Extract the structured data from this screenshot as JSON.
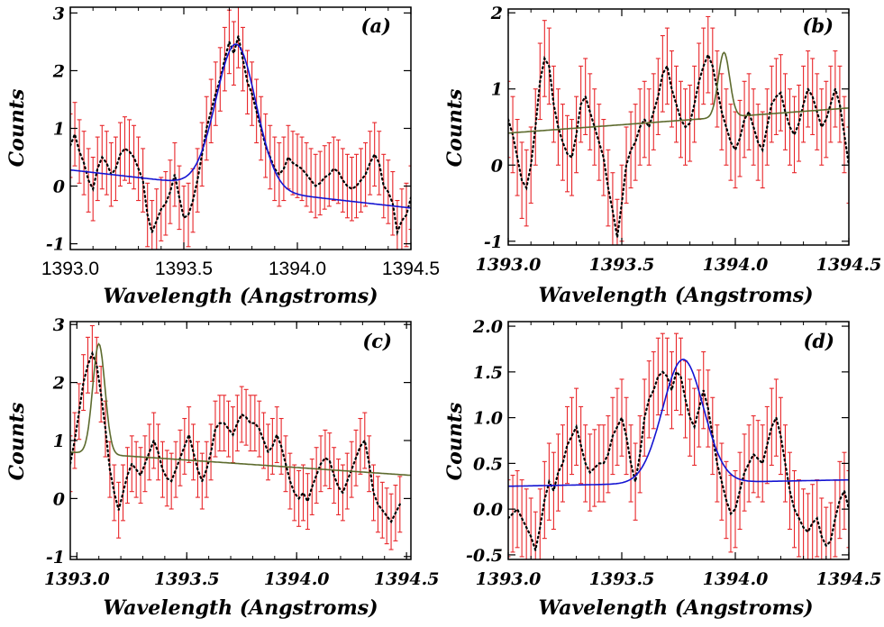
{
  "chart_data": [
    {
      "type": "line",
      "panel_label": "(a)",
      "xlabel": "Wavelength (Angstroms)",
      "ylabel": "Counts",
      "xlim": [
        1393.0,
        1394.5
      ],
      "ylim": [
        -1.1,
        3.1
      ],
      "xticks": [
        "1393.0",
        "1393.5",
        "1394.0",
        "1394.5"
      ],
      "xtick_values": [
        1393.0,
        1393.5,
        1394.0,
        1394.5
      ],
      "xtick_style": "plain",
      "yticks": [
        "-1",
        "0",
        "1",
        "2",
        "3"
      ],
      "ytick_values": [
        -1,
        0,
        1,
        2,
        3
      ],
      "data_color": "#e8262a",
      "fit_color": "#1414d2",
      "fit": {
        "amp": 2.5,
        "center": 1393.73,
        "sigma": 0.088,
        "base_y0": 0.28,
        "base_y1": -0.38
      },
      "x": [
        1393.0,
        1393.02,
        1393.04,
        1393.06,
        1393.08,
        1393.1,
        1393.12,
        1393.14,
        1393.16,
        1393.18,
        1393.2,
        1393.22,
        1393.24,
        1393.26,
        1393.28,
        1393.3,
        1393.32,
        1393.34,
        1393.36,
        1393.38,
        1393.4,
        1393.42,
        1393.44,
        1393.46,
        1393.48,
        1393.5,
        1393.52,
        1393.54,
        1393.56,
        1393.58,
        1393.6,
        1393.62,
        1393.64,
        1393.66,
        1393.68,
        1393.7,
        1393.72,
        1393.74,
        1393.76,
        1393.78,
        1393.8,
        1393.82,
        1393.84,
        1393.86,
        1393.88,
        1393.9,
        1393.92,
        1393.94,
        1393.96,
        1393.98,
        1394.0,
        1394.02,
        1394.04,
        1394.06,
        1394.08,
        1394.1,
        1394.12,
        1394.14,
        1394.16,
        1394.18,
        1394.2,
        1394.22,
        1394.24,
        1394.26,
        1394.28,
        1394.3,
        1394.32,
        1394.34,
        1394.36,
        1394.38,
        1394.4,
        1394.42,
        1394.44,
        1394.46,
        1394.48,
        1394.5
      ],
      "y": [
        0.7,
        0.9,
        0.6,
        0.4,
        0.1,
        -0.05,
        0.3,
        0.5,
        0.4,
        0.2,
        0.3,
        0.55,
        0.65,
        0.6,
        0.5,
        0.3,
        0.1,
        -0.5,
        -0.8,
        -0.6,
        -0.4,
        -0.3,
        -0.1,
        0.2,
        -0.2,
        -0.55,
        -0.5,
        -0.25,
        0.1,
        0.55,
        1.0,
        1.3,
        1.6,
        1.85,
        2.2,
        2.5,
        2.3,
        2.6,
        2.2,
        1.8,
        1.6,
        1.3,
        1.0,
        0.7,
        0.5,
        0.3,
        0.2,
        0.3,
        0.5,
        0.4,
        0.35,
        0.3,
        0.2,
        0.1,
        0.0,
        0.05,
        0.15,
        0.2,
        0.3,
        0.25,
        0.1,
        0.0,
        -0.05,
        0.0,
        0.1,
        0.2,
        0.4,
        0.55,
        0.4,
        0.0,
        -0.1,
        -0.3,
        -0.8,
        -0.6,
        -0.5,
        -0.2
      ],
      "err": 0.55
    },
    {
      "type": "line",
      "panel_label": "(b)",
      "xlabel": "Wavelength (Angstroms)",
      "ylabel": "Counts",
      "xlim": [
        1393.0,
        1394.5
      ],
      "ylim": [
        -1.05,
        2.05
      ],
      "xticks": [
        "1393.0",
        "1393.5",
        "1394.0",
        "1394.5"
      ],
      "xtick_values": [
        1393.0,
        1393.5,
        1394.0,
        1394.5
      ],
      "xtick_style": "italic",
      "yticks": [
        "-1",
        "0",
        "1",
        "2"
      ],
      "ytick_values": [
        -1,
        0,
        1,
        2
      ],
      "data_color": "#e8262a",
      "fit_color": "#5d6b2e",
      "fit": {
        "amp": 0.85,
        "center": 1393.95,
        "sigma": 0.025,
        "base_y0": 0.42,
        "base_y1": 0.75
      },
      "x": [
        1393.0,
        1393.02,
        1393.04,
        1393.06,
        1393.08,
        1393.1,
        1393.12,
        1393.14,
        1393.16,
        1393.18,
        1393.2,
        1393.22,
        1393.24,
        1393.26,
        1393.28,
        1393.3,
        1393.32,
        1393.34,
        1393.36,
        1393.38,
        1393.4,
        1393.42,
        1393.44,
        1393.46,
        1393.48,
        1393.5,
        1393.52,
        1393.54,
        1393.56,
        1393.58,
        1393.6,
        1393.62,
        1393.64,
        1393.66,
        1393.68,
        1393.7,
        1393.72,
        1393.74,
        1393.76,
        1393.78,
        1393.8,
        1393.82,
        1393.84,
        1393.86,
        1393.88,
        1393.9,
        1393.92,
        1393.94,
        1393.96,
        1393.98,
        1394.0,
        1394.02,
        1394.04,
        1394.06,
        1394.08,
        1394.1,
        1394.12,
        1394.14,
        1394.16,
        1394.18,
        1394.2,
        1394.22,
        1394.24,
        1394.26,
        1394.28,
        1394.3,
        1394.32,
        1394.34,
        1394.36,
        1394.38,
        1394.4,
        1394.42,
        1394.44,
        1394.46,
        1394.48,
        1394.5
      ],
      "y": [
        0.6,
        0.4,
        0.1,
        -0.2,
        -0.3,
        0.0,
        0.5,
        1.1,
        1.4,
        1.3,
        0.8,
        0.5,
        0.3,
        0.15,
        0.1,
        0.4,
        0.8,
        0.9,
        0.7,
        0.5,
        0.3,
        0.1,
        -0.3,
        -0.6,
        -0.95,
        -0.5,
        0.0,
        0.2,
        0.3,
        0.5,
        0.6,
        0.5,
        0.7,
        0.9,
        1.2,
        1.3,
        1.0,
        0.8,
        0.6,
        0.5,
        0.55,
        0.8,
        1.1,
        1.3,
        1.45,
        1.3,
        1.0,
        0.7,
        0.5,
        0.3,
        0.2,
        0.35,
        0.6,
        0.7,
        0.5,
        0.3,
        0.2,
        0.5,
        0.8,
        0.9,
        0.95,
        0.7,
        0.5,
        0.4,
        0.55,
        0.8,
        1.0,
        0.9,
        0.7,
        0.5,
        0.6,
        0.8,
        1.0,
        0.8,
        0.4,
        0.0
      ],
      "err": 0.5
    },
    {
      "type": "line",
      "panel_label": "(c)",
      "xlabel": "Wavelength (Angstroms)",
      "ylabel": "Counts",
      "xlim": [
        1392.97,
        1394.52
      ],
      "ylim": [
        -1.05,
        3.05
      ],
      "xticks": [
        "1393.0",
        "1393.5",
        "1394.0",
        "1394.5"
      ],
      "xtick_values": [
        1393.0,
        1393.5,
        1394.0,
        1394.5
      ],
      "xtick_style": "italic",
      "yticks": [
        "-1",
        "0",
        "1",
        "2",
        "3"
      ],
      "ytick_values": [
        -1,
        0,
        1,
        2,
        3
      ],
      "data_color": "#e8262a",
      "fit_color": "#5d6b2e",
      "fit": {
        "amp": 1.9,
        "center": 1393.1,
        "sigma": 0.028,
        "base_y0": 0.8,
        "base_y1": 0.4
      },
      "x": [
        1392.97,
        1392.99,
        1393.01,
        1393.03,
        1393.05,
        1393.07,
        1393.09,
        1393.11,
        1393.13,
        1393.15,
        1393.17,
        1393.19,
        1393.21,
        1393.23,
        1393.25,
        1393.27,
        1393.29,
        1393.31,
        1393.33,
        1393.35,
        1393.37,
        1393.39,
        1393.41,
        1393.43,
        1393.45,
        1393.47,
        1393.49,
        1393.51,
        1393.53,
        1393.55,
        1393.57,
        1393.59,
        1393.61,
        1393.63,
        1393.65,
        1393.67,
        1393.69,
        1393.71,
        1393.73,
        1393.75,
        1393.77,
        1393.79,
        1393.81,
        1393.83,
        1393.85,
        1393.87,
        1393.89,
        1393.91,
        1393.93,
        1393.95,
        1393.97,
        1393.99,
        1394.01,
        1394.03,
        1394.05,
        1394.07,
        1394.09,
        1394.11,
        1394.13,
        1394.15,
        1394.17,
        1394.19,
        1394.21,
        1394.23,
        1394.25,
        1394.27,
        1394.29,
        1394.31,
        1394.33,
        1394.35,
        1394.37,
        1394.39,
        1394.41,
        1394.43,
        1394.45,
        1394.47
      ],
      "y": [
        0.6,
        1.0,
        1.5,
        2.0,
        2.3,
        2.5,
        2.3,
        1.8,
        1.2,
        0.5,
        0.1,
        -0.2,
        0.1,
        0.4,
        0.6,
        0.5,
        0.4,
        0.6,
        0.8,
        1.0,
        0.8,
        0.5,
        0.35,
        0.3,
        0.5,
        0.7,
        0.9,
        1.1,
        0.8,
        0.5,
        0.3,
        0.5,
        0.8,
        1.2,
        1.3,
        1.3,
        1.2,
        1.1,
        1.3,
        1.45,
        1.4,
        1.3,
        1.3,
        1.2,
        1.0,
        0.8,
        0.9,
        1.1,
        0.9,
        0.6,
        0.3,
        0.1,
        0.0,
        0.1,
        -0.05,
        0.2,
        0.4,
        0.6,
        0.7,
        0.65,
        0.4,
        0.2,
        0.1,
        0.3,
        0.5,
        0.7,
        0.9,
        1.0,
        0.6,
        0.1,
        -0.1,
        -0.2,
        -0.3,
        -0.4,
        -0.25,
        -0.1
      ],
      "err": 0.48
    },
    {
      "type": "line",
      "panel_label": "(d)",
      "xlabel": "Wavelength (Angstroms)",
      "ylabel": "Counts",
      "xlim": [
        1393.0,
        1394.5
      ],
      "ylim": [
        -0.55,
        2.05
      ],
      "xticks": [
        "1393.0",
        "1393.5",
        "1394.0",
        "1394.5"
      ],
      "xtick_values": [
        1393.0,
        1393.5,
        1394.0,
        1394.5
      ],
      "xtick_style": "italic",
      "yticks": [
        "-0.5",
        "0.0",
        "0.5",
        "1.0",
        "1.5",
        "2.0"
      ],
      "ytick_values": [
        -0.5,
        0.0,
        0.5,
        1.0,
        1.5,
        2.0
      ],
      "data_color": "#e8262a",
      "fit_color": "#1414d2",
      "fit": {
        "amp": 1.35,
        "center": 1393.77,
        "sigma": 0.09,
        "base_y0": 0.25,
        "base_y1": 0.32
      },
      "x": [
        1393.0,
        1393.02,
        1393.04,
        1393.06,
        1393.08,
        1393.1,
        1393.12,
        1393.14,
        1393.16,
        1393.18,
        1393.2,
        1393.22,
        1393.24,
        1393.26,
        1393.28,
        1393.3,
        1393.32,
        1393.34,
        1393.36,
        1393.38,
        1393.4,
        1393.42,
        1393.44,
        1393.46,
        1393.48,
        1393.5,
        1393.52,
        1393.54,
        1393.56,
        1393.58,
        1393.6,
        1393.62,
        1393.64,
        1393.66,
        1393.68,
        1393.7,
        1393.72,
        1393.74,
        1393.76,
        1393.78,
        1393.8,
        1393.82,
        1393.84,
        1393.86,
        1393.88,
        1393.9,
        1393.92,
        1393.94,
        1393.96,
        1393.98,
        1394.0,
        1394.02,
        1394.04,
        1394.06,
        1394.08,
        1394.1,
        1394.12,
        1394.14,
        1394.16,
        1394.18,
        1394.2,
        1394.22,
        1394.24,
        1394.26,
        1394.28,
        1394.3,
        1394.32,
        1394.34,
        1394.36,
        1394.38,
        1394.4,
        1394.42,
        1394.44,
        1394.46,
        1394.48,
        1394.5
      ],
      "y": [
        -0.1,
        -0.05,
        0.0,
        -0.1,
        -0.2,
        -0.3,
        -0.45,
        -0.2,
        0.1,
        0.3,
        0.2,
        0.4,
        0.5,
        0.7,
        0.8,
        0.9,
        0.7,
        0.5,
        0.4,
        0.45,
        0.5,
        0.5,
        0.6,
        0.8,
        0.9,
        1.0,
        0.8,
        0.5,
        0.3,
        0.6,
        1.0,
        1.2,
        1.3,
        1.45,
        1.5,
        1.45,
        1.3,
        1.5,
        1.45,
        1.2,
        1.0,
        0.9,
        1.1,
        1.3,
        1.1,
        0.8,
        0.5,
        0.3,
        0.1,
        -0.05,
        0.0,
        0.2,
        0.4,
        0.5,
        0.6,
        0.55,
        0.5,
        0.7,
        0.9,
        1.0,
        0.8,
        0.5,
        0.2,
        0.0,
        -0.1,
        -0.2,
        -0.25,
        -0.15,
        -0.1,
        -0.3,
        -0.4,
        -0.35,
        -0.1,
        0.1,
        0.2,
        0.0
      ],
      "err": 0.42
    }
  ]
}
